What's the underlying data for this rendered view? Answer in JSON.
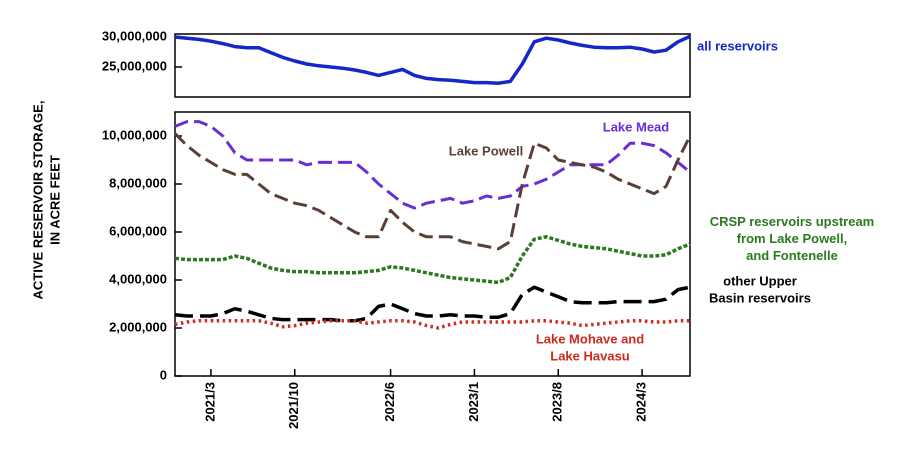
{
  "chart_data": [
    {
      "type": "line",
      "xlim": [
        "2020/12",
        "2024/7"
      ],
      "x": [
        "2020/12",
        "2021/1",
        "2021/2",
        "2021/3",
        "2021/4",
        "2021/5",
        "2021/6",
        "2021/7",
        "2021/8",
        "2021/9",
        "2021/10",
        "2021/11",
        "2021/12",
        "2022/1",
        "2022/2",
        "2022/3",
        "2022/4",
        "2022/5",
        "2022/6",
        "2022/7",
        "2022/8",
        "2022/9",
        "2022/10",
        "2022/11",
        "2022/12",
        "2023/1",
        "2023/2",
        "2023/3",
        "2023/4",
        "2023/5",
        "2023/6",
        "2023/7",
        "2023/8",
        "2023/9",
        "2023/10",
        "2023/11",
        "2023/12",
        "2024/1",
        "2024/2",
        "2024/3",
        "2024/4",
        "2024/5",
        "2024/6",
        "2024/7"
      ],
      "ylim": [
        20000000,
        30500000
      ],
      "yticks": [
        {
          "value": 25000000,
          "label": "25,000,000"
        },
        {
          "value": 30000000,
          "label": "30,000,000"
        }
      ],
      "series": [
        {
          "name": "all reservoirs",
          "color": "#1428c8",
          "values": [
            30000000,
            29800000,
            29600000,
            29300000,
            28900000,
            28400000,
            28200000,
            28200000,
            27400000,
            26600000,
            26000000,
            25500000,
            25200000,
            25000000,
            24800000,
            24500000,
            24100000,
            23600000,
            24100000,
            24600000,
            23600000,
            23100000,
            22900000,
            22800000,
            22600000,
            22400000,
            22400000,
            22300000,
            22600000,
            25500000,
            29200000,
            29800000,
            29500000,
            29000000,
            28600000,
            28300000,
            28200000,
            28200000,
            28300000,
            28000000,
            27500000,
            27800000,
            29200000,
            30100000
          ]
        }
      ]
    },
    {
      "type": "line",
      "xlim": [
        "2020/12",
        "2024/7"
      ],
      "x": [
        "2020/12",
        "2021/1",
        "2021/2",
        "2021/3",
        "2021/4",
        "2021/5",
        "2021/6",
        "2021/7",
        "2021/8",
        "2021/9",
        "2021/10",
        "2021/11",
        "2021/12",
        "2022/1",
        "2022/2",
        "2022/3",
        "2022/4",
        "2022/5",
        "2022/6",
        "2022/7",
        "2022/8",
        "2022/9",
        "2022/10",
        "2022/11",
        "2022/12",
        "2023/1",
        "2023/2",
        "2023/3",
        "2023/4",
        "2023/5",
        "2023/6",
        "2023/7",
        "2023/8",
        "2023/9",
        "2023/10",
        "2023/11",
        "2023/12",
        "2024/1",
        "2024/2",
        "2024/3",
        "2024/4",
        "2024/5",
        "2024/6",
        "2024/7"
      ],
      "xticks": [
        "2021/3",
        "2021/10",
        "2022/6",
        "2023/1",
        "2023/8",
        "2024/3"
      ],
      "y_label": "ACTIVE RESERVOIR STORAGE,\nIN ACRE FEET",
      "ylim": [
        0,
        11000000
      ],
      "yticks": [
        0,
        {
          "value": 2000000,
          "label": "2,000,000"
        },
        {
          "value": 4000000,
          "label": "4,000,000"
        },
        {
          "value": 6000000,
          "label": "6,000,000"
        },
        {
          "value": 8000000,
          "label": "8,000,000"
        },
        {
          "value": 10000000,
          "label": "10,000,000"
        }
      ],
      "series": [
        {
          "name": "Lake Mead",
          "color": "#6a2ed8",
          "values": [
            10400000,
            10600000,
            10600000,
            10400000,
            10000000,
            9300000,
            9000000,
            9000000,
            9000000,
            9000000,
            9000000,
            8800000,
            8900000,
            8900000,
            8900000,
            8900000,
            8500000,
            8000000,
            7600000,
            7200000,
            7000000,
            7200000,
            7300000,
            7400000,
            7200000,
            7300000,
            7500000,
            7400000,
            7500000,
            7900000,
            8000000,
            8200000,
            8500000,
            8800000,
            8800000,
            8800000,
            8800000,
            9200000,
            9700000,
            9700000,
            9600000,
            9300000,
            8900000,
            8500000
          ]
        },
        {
          "name": "Lake Powell",
          "color": "#5a3f36",
          "values": [
            10100000,
            9600000,
            9200000,
            8900000,
            8600000,
            8400000,
            8400000,
            8000000,
            7600000,
            7400000,
            7200000,
            7100000,
            6900000,
            6600000,
            6300000,
            6000000,
            5800000,
            5800000,
            6900000,
            6400000,
            6000000,
            5800000,
            5800000,
            5800000,
            5600000,
            5500000,
            5400000,
            5300000,
            5600000,
            8000000,
            9700000,
            9500000,
            9000000,
            8900000,
            8800000,
            8700000,
            8500000,
            8200000,
            8000000,
            7800000,
            7600000,
            7900000,
            9000000,
            10000000
          ]
        },
        {
          "name": "CRSP reservoirs upstream\nfrom Lake Powell,\nand Fontenelle",
          "color": "#2a7a1e",
          "values": [
            4900000,
            4850000,
            4850000,
            4850000,
            4850000,
            5000000,
            4900000,
            4700000,
            4500000,
            4400000,
            4350000,
            4350000,
            4300000,
            4300000,
            4300000,
            4300000,
            4350000,
            4400000,
            4550000,
            4500000,
            4400000,
            4300000,
            4200000,
            4100000,
            4050000,
            4000000,
            3950000,
            3900000,
            4100000,
            5000000,
            5700000,
            5800000,
            5650000,
            5500000,
            5400000,
            5350000,
            5300000,
            5200000,
            5100000,
            5000000,
            5000000,
            5050000,
            5300000,
            5500000
          ]
        },
        {
          "name": "other Upper\nBasin reservoirs",
          "color": "#000000",
          "values": [
            2550000,
            2500000,
            2500000,
            2500000,
            2600000,
            2800000,
            2700000,
            2550000,
            2400000,
            2350000,
            2350000,
            2350000,
            2350000,
            2350000,
            2300000,
            2300000,
            2400000,
            2900000,
            3000000,
            2800000,
            2600000,
            2500000,
            2500000,
            2550000,
            2500000,
            2500000,
            2450000,
            2450000,
            2600000,
            3400000,
            3700000,
            3500000,
            3300000,
            3100000,
            3050000,
            3050000,
            3050000,
            3100000,
            3100000,
            3100000,
            3100000,
            3200000,
            3600000,
            3700000
          ]
        },
        {
          "name": "Lake Mohave and\nLake Havasu",
          "color": "#cc2b1f",
          "values": [
            2150000,
            2250000,
            2300000,
            2300000,
            2300000,
            2300000,
            2300000,
            2300000,
            2200000,
            2050000,
            2100000,
            2200000,
            2250000,
            2300000,
            2300000,
            2300000,
            2200000,
            2250000,
            2300000,
            2300000,
            2250000,
            2100000,
            2000000,
            2150000,
            2250000,
            2250000,
            2250000,
            2250000,
            2250000,
            2250000,
            2300000,
            2300000,
            2250000,
            2200000,
            2100000,
            2150000,
            2200000,
            2250000,
            2300000,
            2300000,
            2250000,
            2250000,
            2300000,
            2300000
          ]
        }
      ]
    }
  ]
}
